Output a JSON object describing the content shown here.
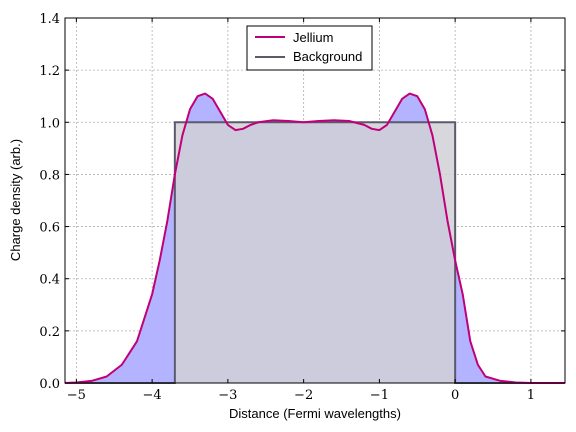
{
  "chart_data": {
    "type": "area",
    "xlabel": "Distance (Fermi wavelengths)",
    "ylabel": "Charge density (arb.)",
    "xlim": [
      -5.15,
      1.45
    ],
    "ylim": [
      0.0,
      1.4
    ],
    "xticks": [
      -5,
      -4,
      -3,
      -2,
      -1,
      0,
      1
    ],
    "yticks": [
      0.0,
      0.2,
      0.4,
      0.6,
      0.8,
      1.0,
      1.2,
      1.4
    ],
    "xtick_labels": [
      "−5",
      "−4",
      "−3",
      "−2",
      "−1",
      "0",
      "1"
    ],
    "ytick_labels": [
      "0.0",
      "0.2",
      "0.4",
      "0.6",
      "0.8",
      "1.0",
      "1.2",
      "1.4"
    ],
    "grid": true,
    "legend_position": "top-center",
    "series": [
      {
        "name": "Jellium",
        "color": "#c0007a",
        "fill_color": "#b3b3ff",
        "x": [
          -5.15,
          -5.0,
          -4.8,
          -4.6,
          -4.4,
          -4.2,
          -4.0,
          -3.9,
          -3.8,
          -3.7,
          -3.6,
          -3.5,
          -3.4,
          -3.3,
          -3.2,
          -3.1,
          -3.0,
          -2.9,
          -2.8,
          -2.7,
          -2.6,
          -2.4,
          -2.2,
          -2.0,
          -1.8,
          -1.6,
          -1.4,
          -1.2,
          -1.1,
          -1.0,
          -0.9,
          -0.8,
          -0.7,
          -0.6,
          -0.5,
          -0.4,
          -0.3,
          -0.2,
          -0.1,
          0.0,
          0.1,
          0.2,
          0.3,
          0.4,
          0.6,
          0.8,
          1.0,
          1.2,
          1.45
        ],
        "y": [
          0.0,
          0.002,
          0.008,
          0.025,
          0.07,
          0.16,
          0.34,
          0.47,
          0.62,
          0.8,
          0.95,
          1.05,
          1.1,
          1.11,
          1.09,
          1.04,
          0.99,
          0.97,
          0.975,
          0.99,
          1.0,
          1.008,
          1.005,
          1.0,
          1.005,
          1.008,
          1.005,
          0.99,
          0.975,
          0.97,
          0.99,
          1.04,
          1.09,
          1.11,
          1.1,
          1.05,
          0.95,
          0.8,
          0.62,
          0.47,
          0.34,
          0.16,
          0.07,
          0.025,
          0.008,
          0.002,
          0.0,
          0.0,
          0.0
        ]
      },
      {
        "name": "Background",
        "color": "#5a5a6e",
        "fill_color": "#d0d0d6",
        "x": [
          -5.15,
          -3.7,
          -3.7,
          0.0,
          0.0,
          1.45
        ],
        "y": [
          0.0,
          0.0,
          1.0,
          1.0,
          0.0,
          0.0
        ]
      }
    ]
  }
}
